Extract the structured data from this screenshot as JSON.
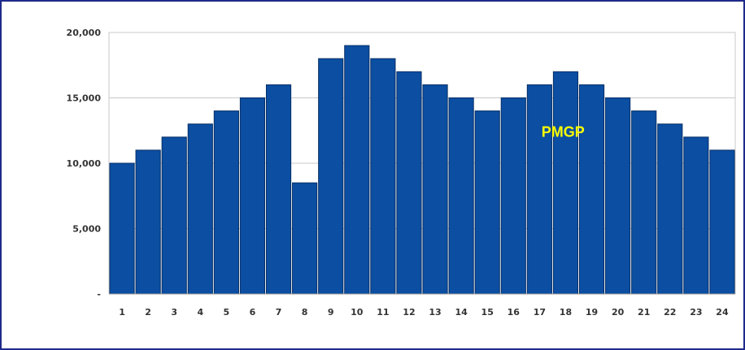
{
  "chart_data": {
    "type": "bar",
    "title": "",
    "xlabel": "",
    "ylabel": "",
    "categories": [
      "1",
      "2",
      "3",
      "4",
      "5",
      "6",
      "7",
      "8",
      "9",
      "10",
      "11",
      "12",
      "13",
      "14",
      "15",
      "16",
      "17",
      "18",
      "19",
      "20",
      "21",
      "22",
      "23",
      "24"
    ],
    "values": [
      10000,
      11000,
      12000,
      13000,
      14000,
      15000,
      16000,
      8500,
      18000,
      19000,
      18000,
      17000,
      16000,
      15000,
      14000,
      15000,
      16000,
      17000,
      16000,
      15000,
      14000,
      13000,
      12000,
      11000
    ],
    "ylim": [
      0,
      20000
    ],
    "yticks": [
      {
        "value": 0,
        "label": "-"
      },
      {
        "value": 5000,
        "label": "5,000"
      },
      {
        "value": 10000,
        "label": "10,000"
      },
      {
        "value": 15000,
        "label": "15,000"
      },
      {
        "value": 20000,
        "label": "20,000"
      }
    ],
    "grid": true,
    "legend": "none",
    "bar_color": "#0b4ea2",
    "annotation": {
      "text": "PMGP",
      "color": "#ffff00"
    }
  }
}
